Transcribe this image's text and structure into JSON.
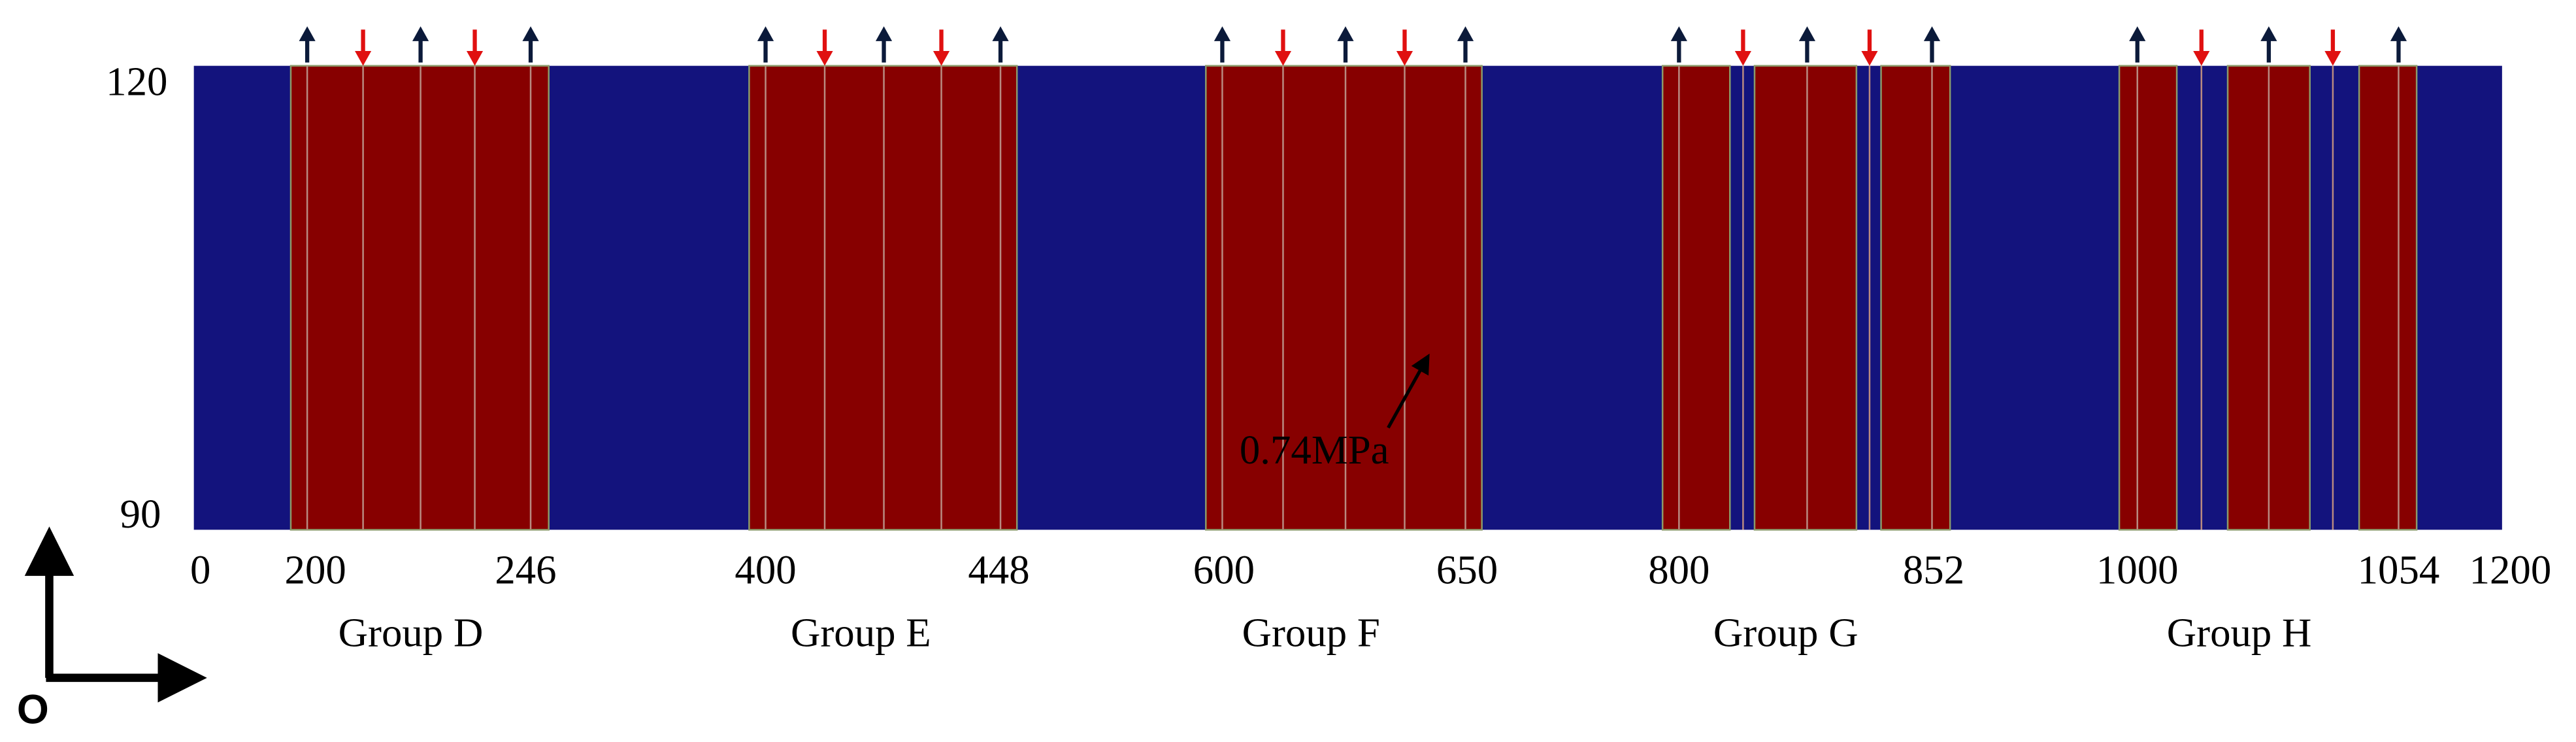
{
  "y_axis": {
    "labels": [
      "120",
      "90"
    ]
  },
  "x_axis": {
    "labels": [
      "0",
      "200",
      "246",
      "400",
      "448",
      "600",
      "650",
      "800",
      "852",
      "1000",
      "1054",
      "1200"
    ]
  },
  "groups": [
    "Group D",
    "Group E",
    "Group F",
    "Group G",
    "Group H"
  ],
  "annotation": "0.74MPa",
  "origin_label": "O"
}
